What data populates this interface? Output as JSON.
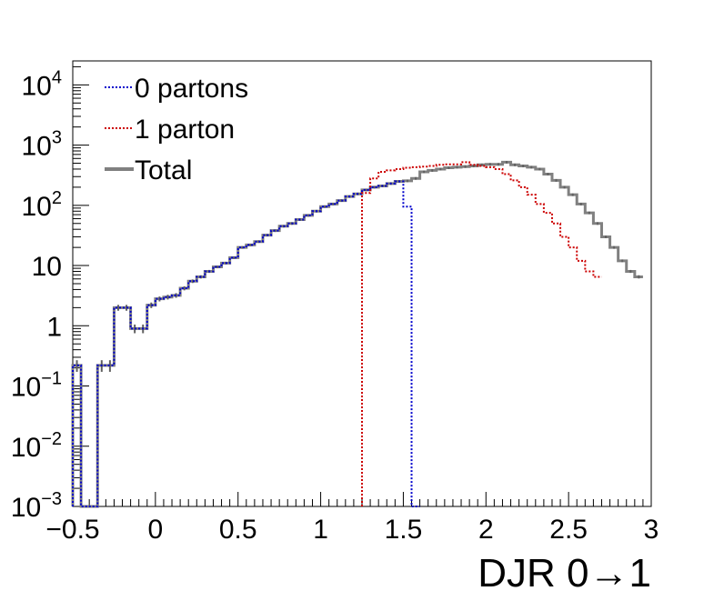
{
  "chart_data": {
    "type": "line",
    "style": "step-histogram",
    "xlabel": "DJR 0→1",
    "xlim": [
      -0.5,
      3.0
    ],
    "ylim": [
      0.001,
      25000
    ],
    "yscale": "log",
    "grid": false,
    "legend_position": "top-left",
    "x_ticks": [
      "−0.5",
      "0",
      "0.5",
      "1",
      "1.5",
      "2",
      "2.5",
      "3"
    ],
    "y_ticks": [
      {
        "base": "10",
        "exp": "−3"
      },
      {
        "base": "10",
        "exp": "−2"
      },
      {
        "base": "10",
        "exp": "−1"
      },
      {
        "base": "1",
        "exp": ""
      },
      {
        "base": "10",
        "exp": ""
      },
      {
        "base": "10",
        "exp": "2"
      },
      {
        "base": "10",
        "exp": "3"
      },
      {
        "base": "10",
        "exp": "4"
      }
    ],
    "bin_width": 0.05,
    "series": [
      {
        "name": "0 partons",
        "color": "#0000cc",
        "dash": "dotted",
        "x_start": -0.5,
        "values": [
          0.22,
          0.001,
          0.001,
          0.22,
          0.22,
          2.0,
          2.0,
          0.9,
          0.9,
          2.2,
          2.8,
          3.0,
          3.2,
          4.2,
          5.5,
          6.5,
          8.0,
          9.5,
          11.0,
          13.5,
          20.0,
          22.0,
          25.0,
          32.0,
          38.0,
          45.0,
          50.0,
          58.0,
          68.0,
          80.0,
          95.0,
          105.0,
          120.0,
          140.0,
          155.0,
          180.0,
          200.0,
          210.0,
          230.0,
          250.0,
          95.0,
          0.001
        ]
      },
      {
        "name": "1 parton",
        "color": "#cc0000",
        "dash": "dotted",
        "x_start": 1.25,
        "values": [
          160.0,
          280.0,
          360.0,
          380.0,
          400.0,
          420.0,
          430.0,
          440.0,
          450.0,
          470.0,
          480.0,
          480.0,
          520.0,
          470.0,
          450.0,
          430.0,
          400.0,
          330.0,
          260.0,
          200.0,
          150.0,
          105.0,
          75.0,
          50.0,
          30.0,
          20.0,
          12.0,
          8.0,
          6.5
        ]
      },
      {
        "name": "Total",
        "color": "#808080",
        "dash": "solid",
        "x_start": -0.5,
        "values": [
          0.22,
          0.001,
          0.001,
          0.22,
          0.22,
          2.0,
          2.0,
          0.9,
          0.9,
          2.2,
          2.8,
          3.0,
          3.2,
          4.2,
          5.5,
          6.5,
          8.0,
          9.5,
          11.0,
          13.5,
          20.0,
          22.0,
          25.0,
          32.0,
          38.0,
          45.0,
          50.0,
          58.0,
          68.0,
          80.0,
          95.0,
          105.0,
          120.0,
          140.0,
          155.0,
          180.0,
          200.0,
          210.0,
          230.0,
          250.0,
          255.0,
          280.0,
          360.0,
          380.0,
          400.0,
          420.0,
          430.0,
          440.0,
          450.0,
          470.0,
          480.0,
          480.0,
          520.0,
          470.0,
          450.0,
          430.0,
          400.0,
          330.0,
          260.0,
          200.0,
          150.0,
          105.0,
          75.0,
          50.0,
          30.0,
          20.0,
          12.0,
          8.0,
          6.5
        ]
      }
    ]
  }
}
